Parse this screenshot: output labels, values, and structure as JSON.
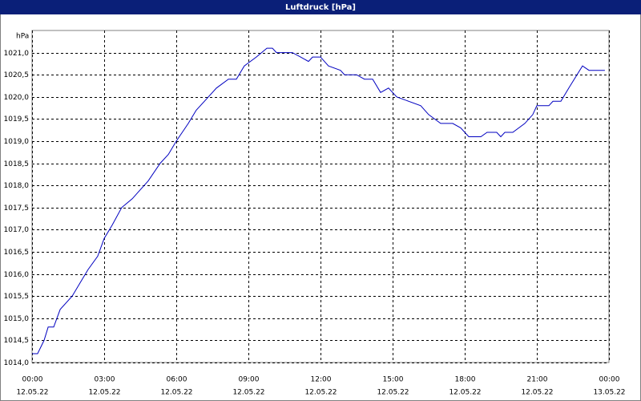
{
  "chart_data": {
    "type": "line",
    "title": "Luftdruck [hPa]",
    "y_unit": "hPa",
    "x": [
      0,
      0.23,
      0.5,
      0.67,
      0.9,
      1.17,
      1.67,
      2,
      2.33,
      2.73,
      3,
      3.33,
      3.73,
      4.17,
      4.5,
      4.83,
      5.33,
      5.67,
      6,
      6.5,
      6.83,
      7.17,
      7.67,
      8.17,
      8.5,
      8.83,
      9.33,
      9.77,
      10,
      10.17,
      10.83,
      11.17,
      11.5,
      11.67,
      12,
      12.33,
      12.83,
      13,
      13.5,
      13.83,
      14.17,
      14.5,
      14.83,
      15.17,
      15.67,
      16.17,
      16.5,
      17,
      17.5,
      17.83,
      18.17,
      18.67,
      18.93,
      19.33,
      19.5,
      19.67,
      20,
      20.5,
      20.83,
      21,
      21.5,
      21.67,
      22,
      22.33,
      22.67,
      22.9,
      23.17,
      23.83
    ],
    "series": [
      {
        "name": "Luftdruck",
        "color": "#0000c0",
        "values": [
          1014.2,
          1014.2,
          1014.5,
          1014.8,
          1014.8,
          1015.2,
          1015.5,
          1015.8,
          1016.1,
          1016.4,
          1016.8,
          1017.1,
          1017.5,
          1017.7,
          1017.9,
          1018.1,
          1018.5,
          1018.7,
          1019.0,
          1019.4,
          1019.7,
          1019.9,
          1020.2,
          1020.4,
          1020.4,
          1020.7,
          1020.9,
          1021.1,
          1021.1,
          1021.0,
          1021.0,
          1020.9,
          1020.8,
          1020.9,
          1020.9,
          1020.7,
          1020.6,
          1020.5,
          1020.5,
          1020.4,
          1020.4,
          1020.1,
          1020.2,
          1020.0,
          1019.9,
          1019.8,
          1019.6,
          1019.4,
          1019.4,
          1019.3,
          1019.1,
          1019.1,
          1019.2,
          1019.2,
          1019.1,
          1019.2,
          1019.2,
          1019.4,
          1019.6,
          1019.8,
          1019.8,
          1019.9,
          1019.9,
          1020.2,
          1020.5,
          1020.7,
          1020.6,
          1020.6
        ]
      }
    ],
    "xlim": [
      0,
      24
    ],
    "xticks": [
      {
        "value": 0,
        "label": "00:00"
      },
      {
        "value": 3,
        "label": "03:00"
      },
      {
        "value": 6,
        "label": "06:00"
      },
      {
        "value": 9,
        "label": "09:00"
      },
      {
        "value": 12,
        "label": "12:00"
      },
      {
        "value": 15,
        "label": "15:00"
      },
      {
        "value": 18,
        "label": "18:00"
      },
      {
        "value": 21,
        "label": "21:00"
      },
      {
        "value": 24,
        "label": "00:00"
      }
    ],
    "xtick_dates": [
      "12.05.22",
      "12.05.22",
      "12.05.22",
      "12.05.22",
      "12.05.22",
      "12.05.22",
      "12.05.22",
      "12.05.22",
      "13.05.22"
    ],
    "ylim": [
      1014.0,
      1021.5
    ],
    "yticks": [
      {
        "value": 1014.0,
        "label": "1014,0"
      },
      {
        "value": 1014.5,
        "label": "1014,5"
      },
      {
        "value": 1015.0,
        "label": "1015,0"
      },
      {
        "value": 1015.5,
        "label": "1015,5"
      },
      {
        "value": 1016.0,
        "label": "1016,0"
      },
      {
        "value": 1016.5,
        "label": "1016,5"
      },
      {
        "value": 1017.0,
        "label": "1017,0"
      },
      {
        "value": 1017.5,
        "label": "1017,5"
      },
      {
        "value": 1018.0,
        "label": "1018,0"
      },
      {
        "value": 1018.5,
        "label": "1018,5"
      },
      {
        "value": 1019.0,
        "label": "1019,0"
      },
      {
        "value": 1019.5,
        "label": "1019,5"
      },
      {
        "value": 1020.0,
        "label": "1020,0"
      },
      {
        "value": 1020.5,
        "label": "1020,5"
      },
      {
        "value": 1021.0,
        "label": "1021,0"
      }
    ],
    "grid": true
  }
}
